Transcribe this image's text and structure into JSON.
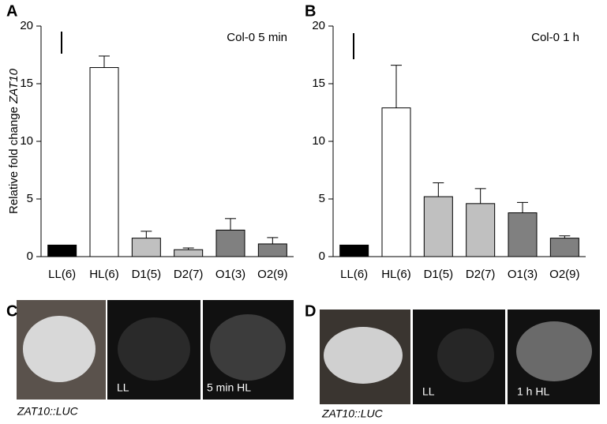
{
  "chart_data": [
    {
      "type": "bar",
      "panel": "A",
      "annotation": "Col-0   5 min",
      "ylabel": "Relative fold change ",
      "ylabel_italic": "ZAT10",
      "categories": [
        "LL(6)",
        "HL(6)",
        "D1(5)",
        "D2(7)",
        "O1(3)",
        "O2(9)"
      ],
      "values": [
        1.0,
        16.4,
        1.6,
        0.6,
        2.3,
        1.1
      ],
      "errors": [
        0,
        1.0,
        0.6,
        0.15,
        1.0,
        0.55
      ],
      "colors": [
        "#000000",
        "#ffffff",
        "#c0c0c0",
        "#c0c0c0",
        "#808080",
        "#808080"
      ],
      "ylim": [
        0,
        20
      ],
      "yticks": [
        0,
        5,
        10,
        15,
        20
      ]
    },
    {
      "type": "bar",
      "panel": "B",
      "annotation": "Col-0    1 h",
      "categories": [
        "LL(6)",
        "HL(6)",
        "D1(5)",
        "D2(7)",
        "O1(3)",
        "O2(9)"
      ],
      "values": [
        1.0,
        12.9,
        5.2,
        4.6,
        3.8,
        1.6
      ],
      "errors": [
        0,
        3.7,
        1.2,
        1.3,
        0.9,
        0.2
      ],
      "colors": [
        "#000000",
        "#ffffff",
        "#c0c0c0",
        "#c0c0c0",
        "#808080",
        "#808080"
      ],
      "ylim": [
        0,
        20
      ],
      "yticks": [
        0,
        5,
        10,
        15,
        20
      ]
    }
  ],
  "photos": [
    {
      "panel": "C",
      "caption": "ZAT10::LUC",
      "labels": [
        "LL",
        "5 min HL"
      ]
    },
    {
      "panel": "D",
      "caption": "ZAT10::LUC",
      "labels": [
        "LL",
        "1 h HL"
      ]
    }
  ]
}
